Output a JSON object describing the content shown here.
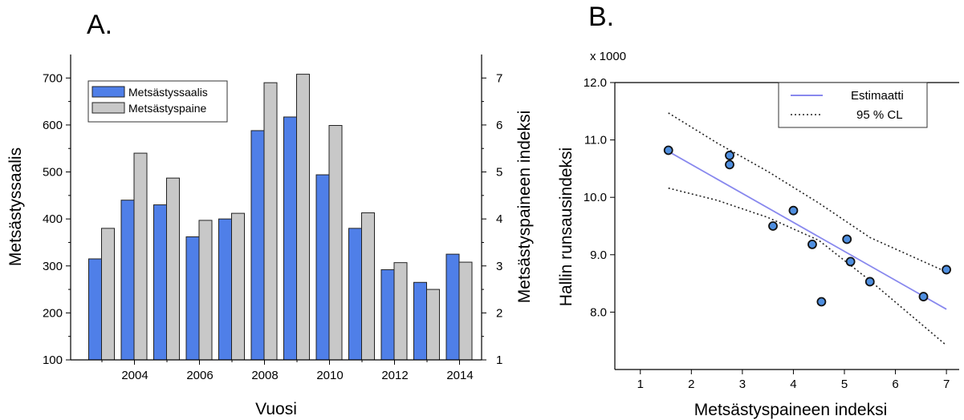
{
  "chart_data": [
    {
      "panel_label": "A.",
      "type": "bar",
      "xlabel": "Vuosi",
      "ylabel_left": "Metsästyssaalis",
      "ylabel_right": "Metsästyspaineen indeksi",
      "ylim_left": [
        100,
        750
      ],
      "ylim_right": [
        1,
        7.5
      ],
      "left_ticks": [
        "100",
        "200",
        "300",
        "400",
        "500",
        "600",
        "700"
      ],
      "right_ticks": [
        "1",
        "2",
        "3",
        "4",
        "5",
        "6",
        "7"
      ],
      "categories": [
        2003,
        2004,
        2005,
        2006,
        2007,
        2008,
        2009,
        2010,
        2011,
        2012,
        2013,
        2014
      ],
      "x_tick_labels": [
        "2004",
        "2006",
        "2008",
        "2010",
        "2012",
        "2014"
      ],
      "legend_position": "top-left",
      "series": [
        {
          "name": "Metsästyssaalis",
          "axis": "left",
          "color": "#4f7fe8",
          "values": [
            315,
            440,
            430,
            362,
            400,
            588,
            617,
            494,
            380,
            292,
            265,
            325
          ]
        },
        {
          "name": "Metsästyspaine",
          "axis": "right",
          "color": "#c8c8c8",
          "values": [
            3.8,
            5.4,
            4.87,
            3.97,
            4.12,
            6.9,
            7.08,
            5.99,
            4.13,
            3.07,
            2.5,
            3.08
          ]
        }
      ]
    },
    {
      "panel_label": "B.",
      "type": "scatter",
      "xlabel": "Metsästyspaineen indeksi",
      "ylabel": "Hallin runsausindeksi",
      "y_multiplier": "x 1000",
      "xlim": [
        0.5,
        7.25
      ],
      "ylim": [
        7.0,
        12.0
      ],
      "x_ticks": [
        "1",
        "2",
        "3",
        "4",
        "5",
        "6",
        "7"
      ],
      "y_ticks": [
        "8.0",
        "9.0",
        "10.0",
        "11.0",
        "12.0"
      ],
      "legend_position": "top-right",
      "legend": [
        {
          "label": "Estimaatti",
          "style": "solid",
          "color": "#8888ee"
        },
        {
          "label": "95 % CL",
          "style": "dotted",
          "color": "#222222"
        }
      ],
      "points_color": "#4f8fe0",
      "points": [
        {
          "x": 1.55,
          "y": 10.82
        },
        {
          "x": 2.75,
          "y": 10.73
        },
        {
          "x": 2.75,
          "y": 10.57
        },
        {
          "x": 3.6,
          "y": 9.5
        },
        {
          "x": 4.0,
          "y": 9.77
        },
        {
          "x": 4.37,
          "y": 9.18
        },
        {
          "x": 4.55,
          "y": 8.18
        },
        {
          "x": 5.05,
          "y": 9.27
        },
        {
          "x": 5.12,
          "y": 8.88
        },
        {
          "x": 5.5,
          "y": 8.53
        },
        {
          "x": 6.55,
          "y": 8.27
        },
        {
          "x": 7.0,
          "y": 8.74
        }
      ],
      "estimate_line": {
        "x": [
          1.55,
          7.0
        ],
        "y": [
          10.8,
          8.05
        ]
      },
      "ci_upper": {
        "x": [
          1.55,
          2.5,
          3.5,
          4.5,
          5.5,
          7.0
        ],
        "y": [
          11.47,
          10.95,
          10.45,
          9.9,
          9.3,
          8.7
        ]
      },
      "ci_lower": {
        "x": [
          1.55,
          2.5,
          3.5,
          4.5,
          5.5,
          7.0
        ],
        "y": [
          10.16,
          9.95,
          9.65,
          9.25,
          8.55,
          7.42
        ]
      }
    }
  ]
}
